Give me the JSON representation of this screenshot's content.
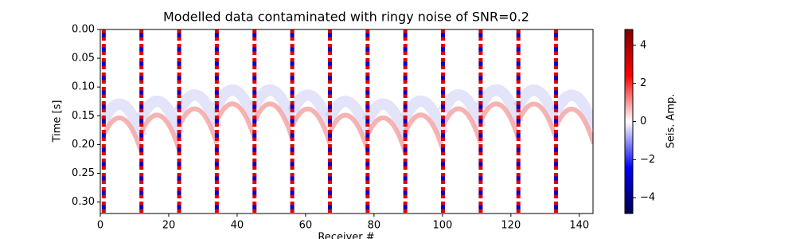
{
  "chart_data": {
    "type": "heatmap",
    "title": "Modelled data contaminated with ringy noise of SNR=0.2",
    "x_label": "Receiver #",
    "y_label": "Time [s]",
    "xlim": [
      0,
      144
    ],
    "xticks": [
      0,
      20,
      40,
      60,
      80,
      100,
      120,
      140
    ],
    "ylim": [
      0.32,
      0
    ],
    "yticks": [
      {
        "value": 0,
        "label": "0.00"
      },
      {
        "value": 0.05,
        "label": "0.05"
      },
      {
        "value": 0.1,
        "label": "0.10"
      },
      {
        "value": 0.15,
        "label": "0.15"
      },
      {
        "value": 0.2,
        "label": "0.20"
      },
      {
        "value": 0.25,
        "label": "0.25"
      },
      {
        "value": 0.3,
        "label": "0.30"
      }
    ],
    "colorbar": {
      "label": "Seis. Amp.",
      "lim": [
        -4.83,
        4.83
      ],
      "ticks": [
        {
          "value": -4,
          "label": "−4"
        },
        {
          "value": -2,
          "label": "−2"
        },
        0,
        2,
        4
      ]
    },
    "colormap": "seismic"
  }
}
